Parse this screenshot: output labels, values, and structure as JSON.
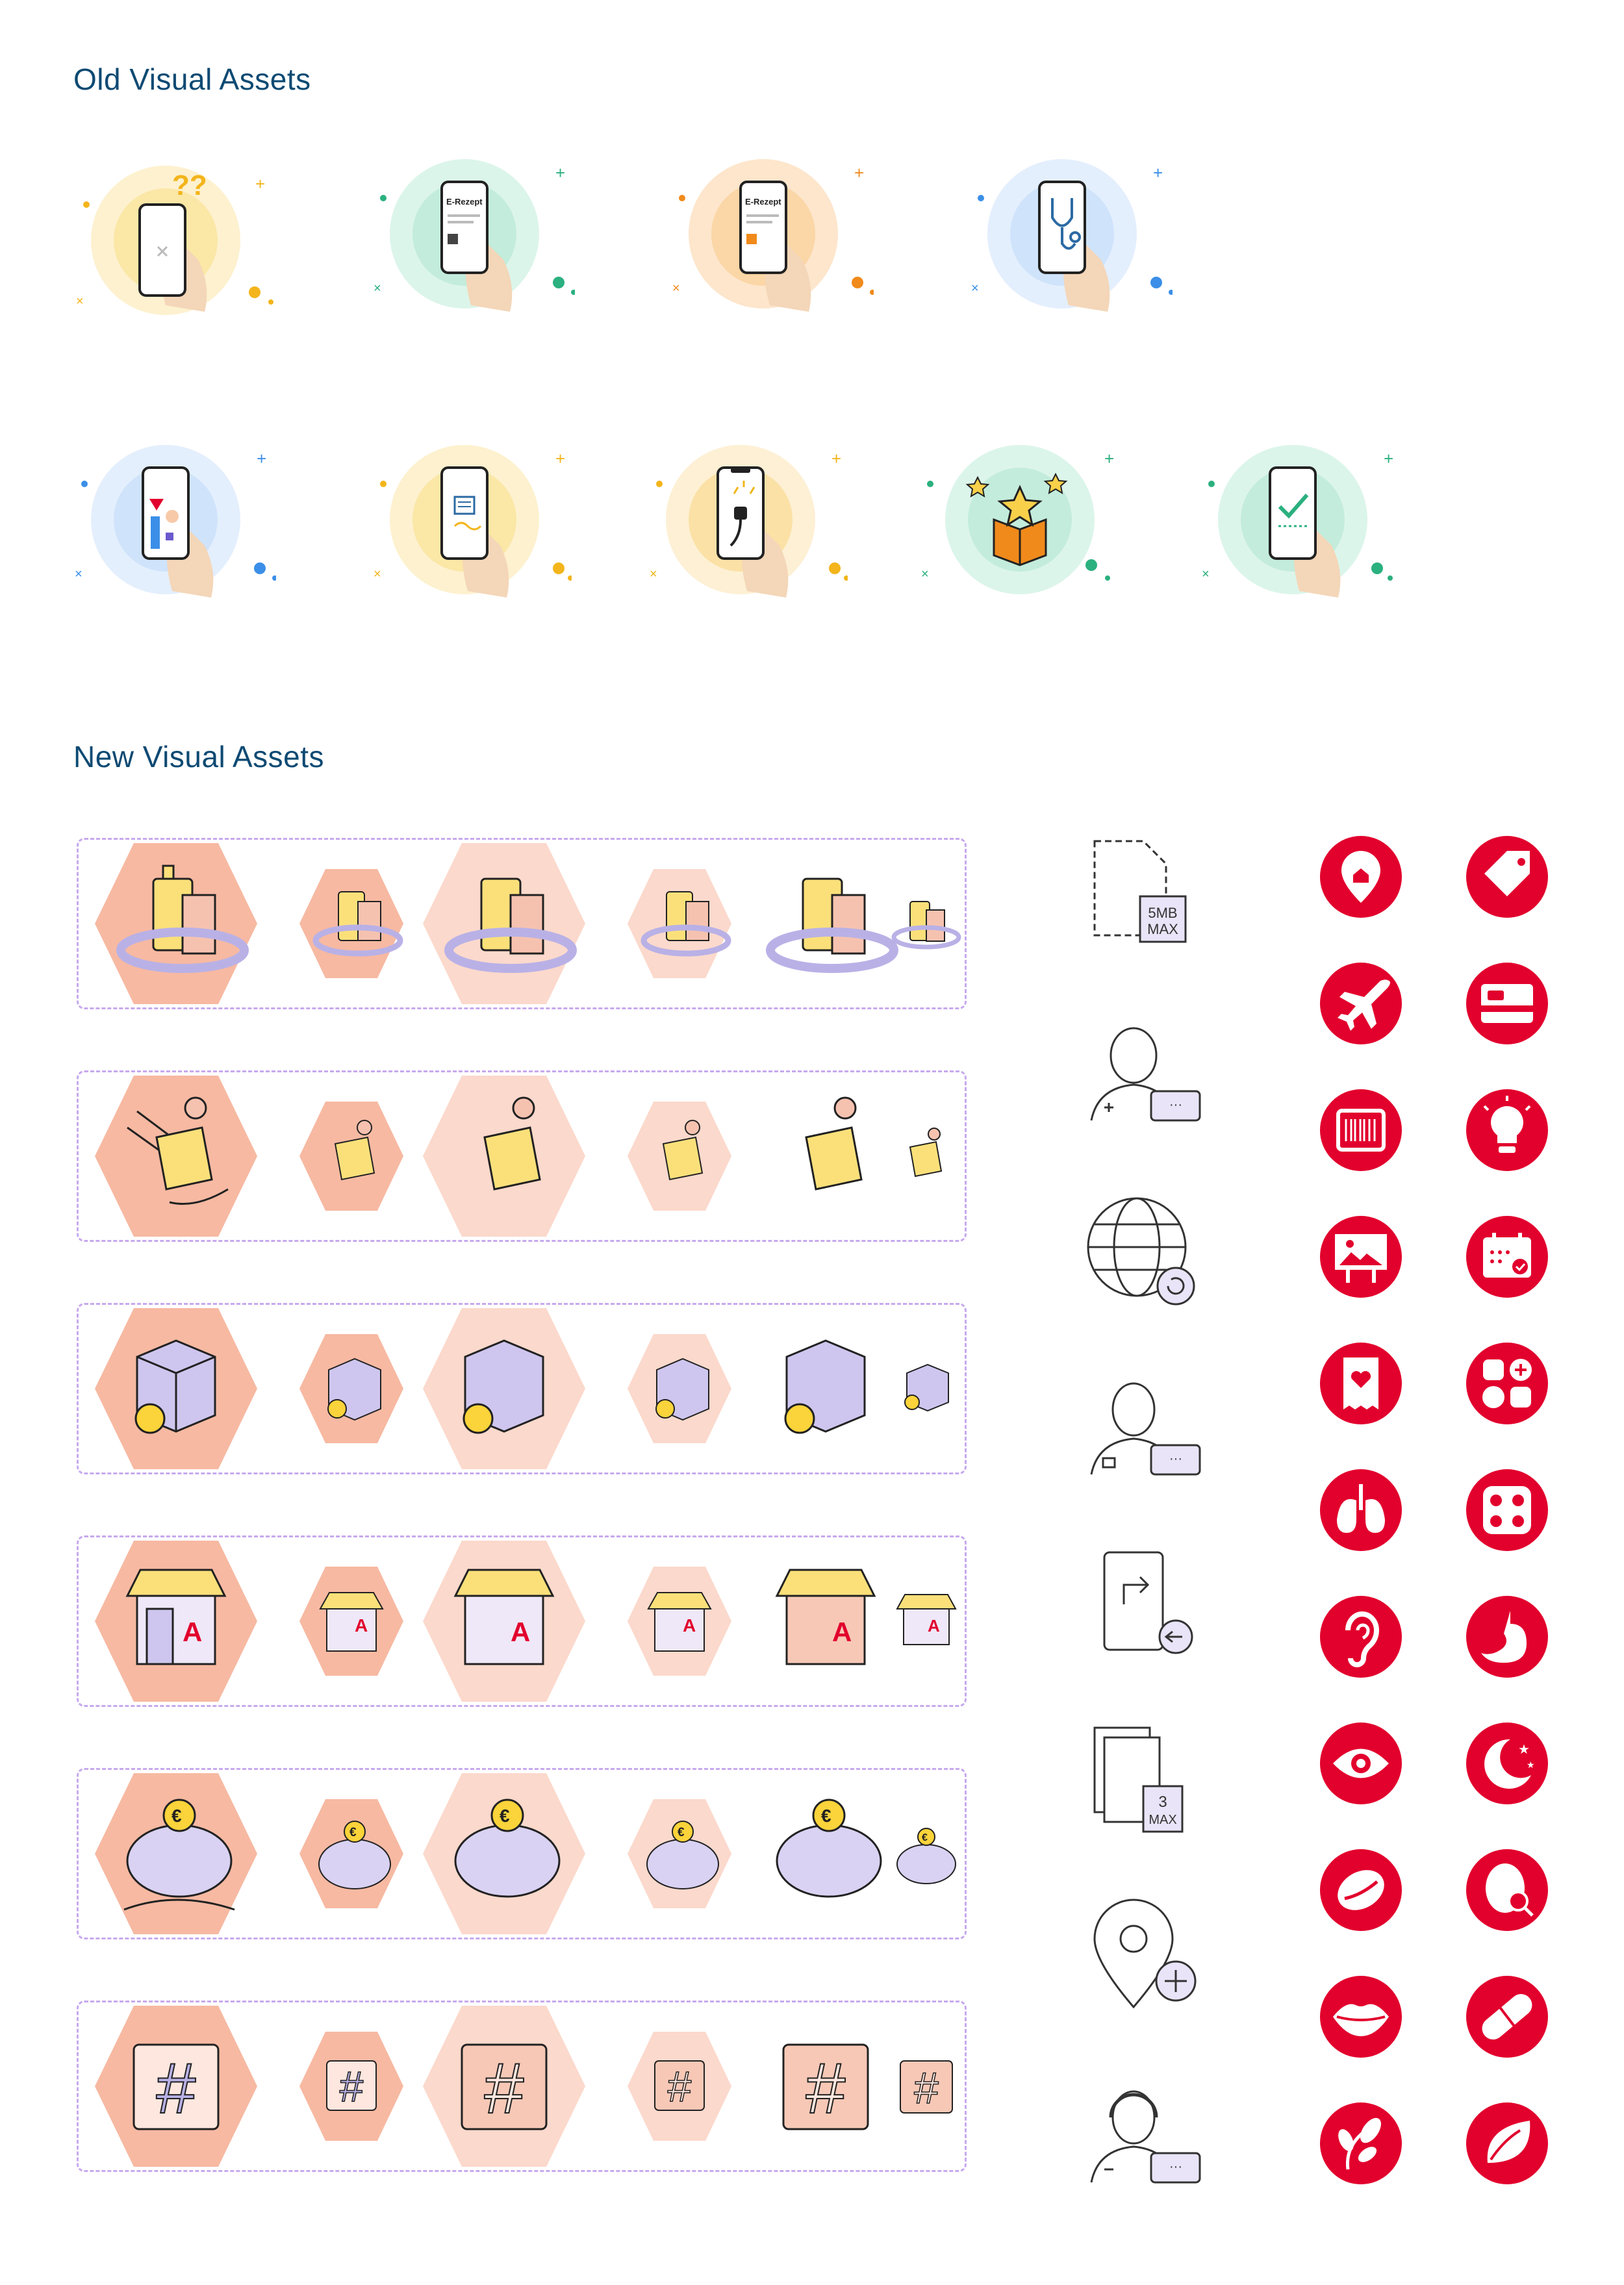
{
  "old_section": {
    "title": "Old Visual Assets",
    "row1": [
      {
        "icon": "phone-question-icon",
        "bg": "#fbe7a6"
      },
      {
        "icon": "phone-e-rezept-icon",
        "bg": "#c3ecdc",
        "text": "E-Rezept"
      },
      {
        "icon": "phone-e-rezept-orange-icon",
        "bg": "#fbd6a6",
        "text": "E-Rezept"
      },
      {
        "icon": "phone-stethoscope-icon",
        "bg": "#cfe3fb"
      }
    ],
    "row2": [
      {
        "icon": "phone-chart-icon",
        "bg": "#cfe3fb"
      },
      {
        "icon": "phone-news-icon",
        "bg": "#fbe7a6"
      },
      {
        "icon": "phone-plug-icon",
        "bg": "#fbe1a6"
      },
      {
        "icon": "gift-box-stars-icon",
        "bg": "#c3ecdc"
      },
      {
        "icon": "phone-check-icon",
        "bg": "#c3ecdc"
      }
    ]
  },
  "new_section": {
    "title": "New Visual Assets",
    "asset_rows": [
      {
        "name": "products-ring-icon"
      },
      {
        "name": "hands-package-icon"
      },
      {
        "name": "return-box-icon"
      },
      {
        "name": "pharmacy-store-icon",
        "letter": "A"
      },
      {
        "name": "piggy-bank-euro-icon",
        "symbol": "€"
      },
      {
        "name": "hashtag-icon",
        "symbol": "#"
      }
    ],
    "line_icons": [
      {
        "name": "file-size-icon",
        "line1": "5MB",
        "line2": "MAX"
      },
      {
        "name": "nurse-chat-icon"
      },
      {
        "name": "globe-refresh-icon"
      },
      {
        "name": "pharmacist-chat-icon"
      },
      {
        "name": "phone-transfer-icon"
      },
      {
        "name": "files-max-icon",
        "line1": "3",
        "line2": "MAX"
      },
      {
        "name": "location-add-icon"
      },
      {
        "name": "support-agent-chat-icon"
      }
    ],
    "red_icons_left": [
      "location-home-icon",
      "airplane-icon",
      "barcode-icon",
      "billboard-image-icon",
      "heart-receipt-icon",
      "lungs-icon",
      "ear-icon",
      "eye-icon",
      "coffee-bean-icon",
      "lips-icon",
      "leaves-icon"
    ],
    "red_icons_right": [
      "price-tag-icon",
      "credit-card-icon",
      "light-bulb-icon",
      "calendar-check-icon",
      "apps-grid-icon",
      "pill-blister-icon",
      "stomach-icon",
      "moon-stars-icon",
      "face-magnifier-icon",
      "capsule-icon",
      "leaf-drop-icon"
    ],
    "accent_red": "#e2002d",
    "hex_peach": "#f7b9a2"
  }
}
